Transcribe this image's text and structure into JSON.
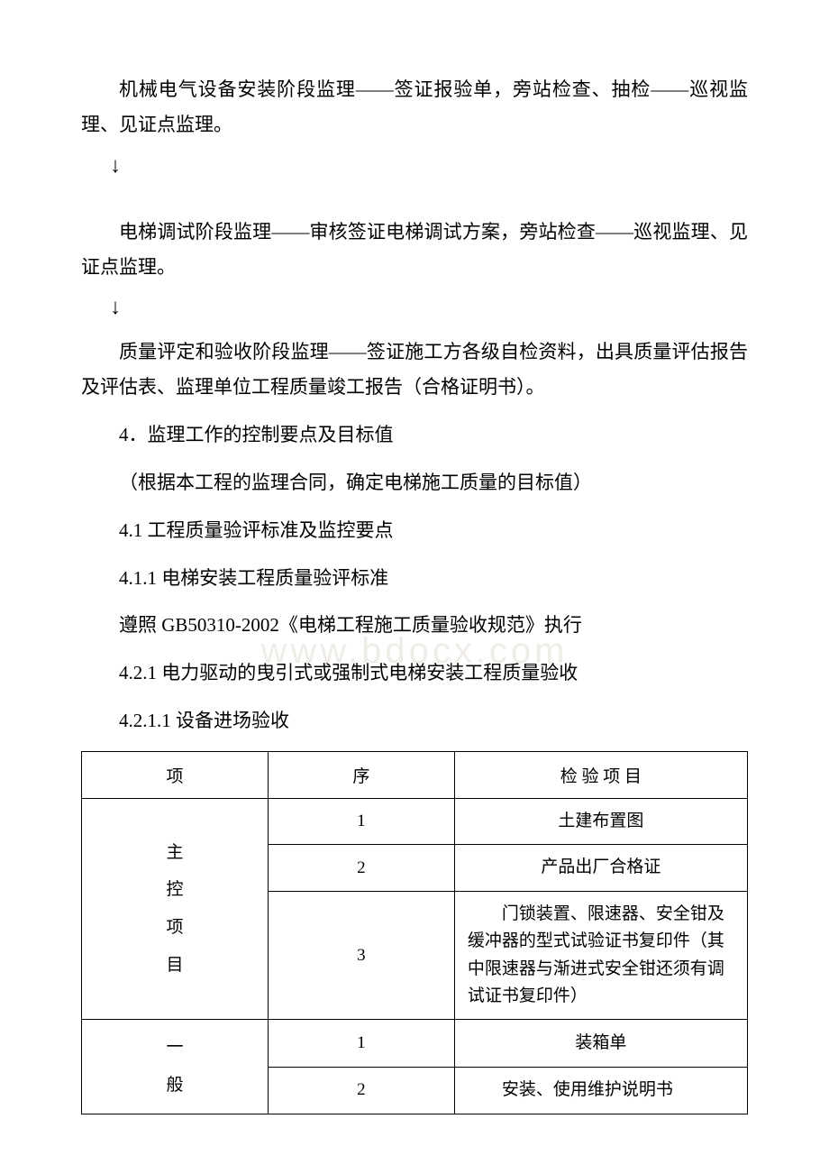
{
  "page": {
    "background_color": "#ffffff",
    "text_color": "#000000",
    "font_family": "SimSun, 宋体, serif",
    "body_fontsize": 21,
    "table_fontsize": 19,
    "watermark_color": "#f0ede8"
  },
  "paragraphs": {
    "p1": "机械电气设备安装阶段监理——签证报验单，旁站检查、抽检——巡视监理、见证点监理。",
    "p2": "电梯调试阶段监理——审核签证电梯调试方案，旁站检查——巡视监理、见证点监理。",
    "p3": "质量评定和验收阶段监理——签证施工方各级自检资料，出具质量评估报告及评估表、监理单位工程质量竣工报告（合格证明书）。"
  },
  "headings": {
    "h4": "4．监理工作的控制要点及目标值",
    "h4_note": "（根据本工程的监理合同，确定电梯施工质量的目标值）",
    "h4_1": "4.1 工程质量验评标准及监控要点",
    "h4_1_1": "4.1.1 电梯安装工程质量验评标准",
    "h4_1_1_note": "遵照 GB50310-2002《电梯工程施工质量验收规范》执行",
    "h4_2_1": "4.2.1 电力驱动的曳引式或强制式电梯安装工程质量验收",
    "h4_2_1_1": "4.2.1.1 设备进场验收"
  },
  "arrow_glyph": "↓",
  "watermark_text": "www.bdocx.com",
  "table": {
    "headers": {
      "col1": "项",
      "col2": "序",
      "col3": "检 验 项 目"
    },
    "category1_label_lines": [
      "主",
      "控",
      "项",
      "目"
    ],
    "category2_label_lines": [
      "一",
      "般"
    ],
    "rows": {
      "r1_seq": "1",
      "r1_item": "土建布置图",
      "r2_seq": "2",
      "r2_item": "产品出厂合格证",
      "r3_seq": "3",
      "r3_item": "门锁装置、限速器、安全钳及缓冲器的型式试验证书复印件（其中限速器与渐进式安全钳还须有调试证书复印件）",
      "r4_seq": "1",
      "r4_item": "装箱单",
      "r5_seq": "2",
      "r5_item": "安装、使用维护说明书"
    },
    "border_color": "#000000",
    "col_widths_pct": [
      28,
      28,
      44
    ]
  }
}
